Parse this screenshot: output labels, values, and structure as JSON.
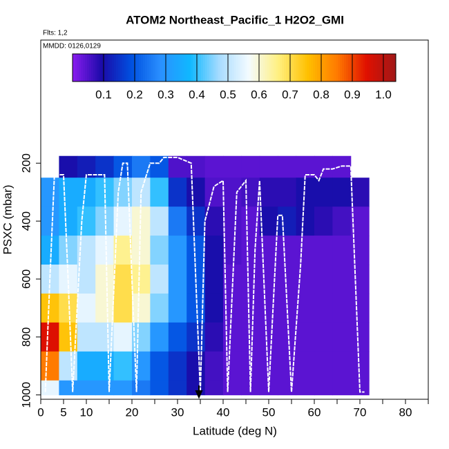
{
  "chart_data": {
    "type": "heatmap",
    "title": "ATOM2 Northeast_Pacific_1 H2O2_GMI",
    "subtitle": "Flts: 1,2",
    "annotation": "MMDD: 0126,0129",
    "x_label": "Latitude (deg N)",
    "y_label": "PSXC (mbar)",
    "xlim": [
      0,
      85
    ],
    "xticks": [
      0,
      5,
      10,
      20,
      30,
      40,
      50,
      60,
      70,
      80
    ],
    "xminorticks": [
      15,
      25,
      35,
      45,
      55,
      65,
      75,
      85
    ],
    "ylim": [
      1015,
      -225
    ],
    "yticks": [
      200,
      400,
      600,
      800,
      1000
    ],
    "lat_edges": [
      0,
      4,
      8,
      12,
      16,
      20,
      24,
      28,
      32,
      36,
      40,
      44,
      48,
      52,
      56,
      60,
      64,
      68,
      72
    ],
    "p_edges": [
      175,
      250,
      350,
      450,
      550,
      650,
      750,
      850,
      950,
      1000
    ],
    "z": [
      [
        null,
        0.1,
        0.12,
        0.15,
        0.2,
        0.25,
        0.2,
        0.05,
        0.05,
        0.04,
        0.04,
        0.04,
        0.04,
        0.04,
        0.04,
        0.04,
        0.04,
        null
      ],
      [
        0.3,
        0.35,
        0.35,
        0.4,
        0.45,
        0.5,
        0.4,
        0.15,
        0.1,
        0.05,
        0.05,
        0.06,
        0.08,
        0.08,
        0.1,
        0.1,
        0.1,
        0.08
      ],
      [
        0.3,
        0.35,
        0.4,
        0.45,
        0.55,
        0.6,
        0.5,
        0.25,
        0.15,
        0.08,
        0.05,
        0.04,
        0.1,
        0.12,
        0.1,
        0.08,
        0.06,
        0.04
      ],
      [
        0.35,
        0.45,
        0.5,
        0.55,
        0.65,
        0.6,
        0.45,
        0.3,
        0.2,
        0.1,
        0.05,
        0.04,
        0.04,
        0.04,
        0.04,
        0.04,
        0.04,
        0.04
      ],
      [
        0.5,
        0.55,
        0.5,
        0.6,
        0.7,
        0.65,
        0.5,
        0.3,
        0.2,
        0.1,
        0.04,
        0.04,
        0.04,
        0.04,
        0.04,
        0.04,
        0.04,
        0.04
      ],
      [
        0.75,
        0.7,
        0.55,
        0.6,
        0.7,
        0.6,
        0.45,
        0.3,
        0.2,
        0.1,
        0.04,
        0.04,
        0.04,
        0.04,
        0.04,
        0.04,
        0.04,
        0.04
      ],
      [
        0.95,
        0.75,
        0.5,
        0.5,
        0.55,
        0.45,
        0.3,
        0.2,
        0.15,
        0.08,
        0.04,
        0.04,
        0.04,
        0.04,
        0.04,
        0.04,
        0.04,
        0.04
      ],
      [
        0.85,
        0.5,
        0.35,
        0.35,
        0.4,
        0.3,
        0.2,
        0.15,
        0.1,
        0.06,
        0.04,
        0.04,
        0.04,
        0.04,
        0.04,
        0.04,
        0.04,
        0.04
      ],
      [
        0.55,
        0.3,
        0.3,
        0.3,
        0.3,
        0.25,
        0.2,
        0.15,
        0.1,
        0.06,
        0.04,
        0.04,
        0.04,
        0.04,
        0.04,
        0.04,
        0.04,
        0.04
      ]
    ],
    "colormap": [
      "#8a1cf0",
      "#1a0aa8",
      "#0050e0",
      "#2a90ff",
      "#10b8ff",
      "#a8dcff",
      "#f4fbff",
      "#fff080",
      "#ffc000",
      "#ff7a00",
      "#e01000",
      "#a01818"
    ],
    "colorbar": {
      "lim": [
        0,
        1.04
      ],
      "ticks": [
        0.1,
        0.2,
        0.3,
        0.4,
        0.5,
        0.6,
        0.7,
        0.8,
        0.9,
        {
          "value": 1,
          "label": "1.0"
        }
      ]
    },
    "track": {
      "color": "#ffffff",
      "x": [
        1,
        2,
        3,
        5,
        6,
        7,
        9,
        10,
        14,
        15,
        17,
        18,
        19,
        20,
        21,
        22,
        24,
        26,
        27,
        30,
        33,
        34,
        35,
        36,
        38,
        40,
        41,
        43,
        45,
        46,
        47,
        48,
        50,
        52,
        53,
        55,
        57,
        58,
        60,
        61,
        62,
        64,
        66,
        68,
        70,
        71
      ],
      "y": [
        990,
        600,
        240,
        240,
        600,
        990,
        400,
        240,
        240,
        990,
        300,
        200,
        200,
        600,
        990,
        300,
        200,
        200,
        180,
        180,
        200,
        600,
        990,
        400,
        280,
        260,
        990,
        300,
        260,
        990,
        500,
        260,
        990,
        380,
        380,
        990,
        550,
        240,
        240,
        260,
        220,
        220,
        210,
        210,
        990,
        990
      ]
    }
  }
}
